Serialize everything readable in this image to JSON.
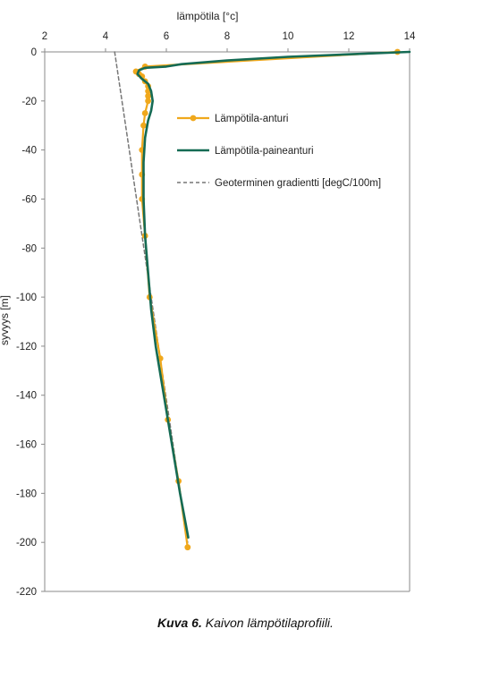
{
  "chart_data": {
    "type": "line",
    "xlabel": "lämpötila [°c]",
    "ylabel": "syvyys [m]",
    "xlim": [
      2,
      14
    ],
    "ylim": [
      -220,
      0
    ],
    "x_ticks": [
      2,
      4,
      6,
      8,
      10,
      12,
      14
    ],
    "y_ticks": [
      0,
      -20,
      -40,
      -60,
      -80,
      -100,
      -120,
      -140,
      -160,
      -180,
      -200,
      -220
    ],
    "x_axis_position": "top",
    "grid": false,
    "legend_position": "upper-right inside",
    "series": [
      {
        "name": "Lämpötila-anturi",
        "color": "#f0a81c",
        "marker": "circle",
        "points": [
          [
            13.6,
            0
          ],
          [
            5.3,
            -6
          ],
          [
            5.0,
            -8
          ],
          [
            5.1,
            -9
          ],
          [
            5.2,
            -10
          ],
          [
            5.3,
            -12
          ],
          [
            5.4,
            -14
          ],
          [
            5.4,
            -16
          ],
          [
            5.4,
            -18
          ],
          [
            5.4,
            -20
          ],
          [
            5.3,
            -25
          ],
          [
            5.25,
            -30
          ],
          [
            5.2,
            -40
          ],
          [
            5.2,
            -50
          ],
          [
            5.2,
            -60
          ],
          [
            5.3,
            -75
          ],
          [
            5.45,
            -100
          ],
          [
            5.8,
            -125
          ],
          [
            6.05,
            -150
          ],
          [
            6.4,
            -175
          ],
          [
            6.7,
            -202
          ]
        ]
      },
      {
        "name": "Lämpötila-paineanturi",
        "color": "#156b54",
        "marker": "none",
        "points": [
          [
            14.0,
            0
          ],
          [
            12.0,
            -1
          ],
          [
            10.0,
            -2
          ],
          [
            8.0,
            -3.5
          ],
          [
            6.5,
            -5
          ],
          [
            6.0,
            -6
          ],
          [
            5.3,
            -6.5
          ],
          [
            5.1,
            -7.5
          ],
          [
            5.05,
            -9
          ],
          [
            5.2,
            -11
          ],
          [
            5.4,
            -13
          ],
          [
            5.5,
            -16
          ],
          [
            5.55,
            -20
          ],
          [
            5.5,
            -24
          ],
          [
            5.4,
            -28
          ],
          [
            5.3,
            -35
          ],
          [
            5.25,
            -45
          ],
          [
            5.25,
            -60
          ],
          [
            5.3,
            -75
          ],
          [
            5.4,
            -90
          ],
          [
            5.5,
            -105
          ],
          [
            5.65,
            -120
          ],
          [
            5.85,
            -135
          ],
          [
            6.05,
            -150
          ],
          [
            6.25,
            -165
          ],
          [
            6.45,
            -180
          ],
          [
            6.6,
            -190
          ],
          [
            6.72,
            -198
          ]
        ]
      },
      {
        "name": "Geoterminen gradientti [degC/100m]",
        "color": "#777777",
        "marker": "none",
        "style": "dashed",
        "points": [
          [
            4.3,
            0
          ],
          [
            6.7,
            -200
          ]
        ]
      }
    ]
  },
  "caption": {
    "label": "Kuva 6.",
    "text": "Kaivon lämpötilaprofiili."
  }
}
